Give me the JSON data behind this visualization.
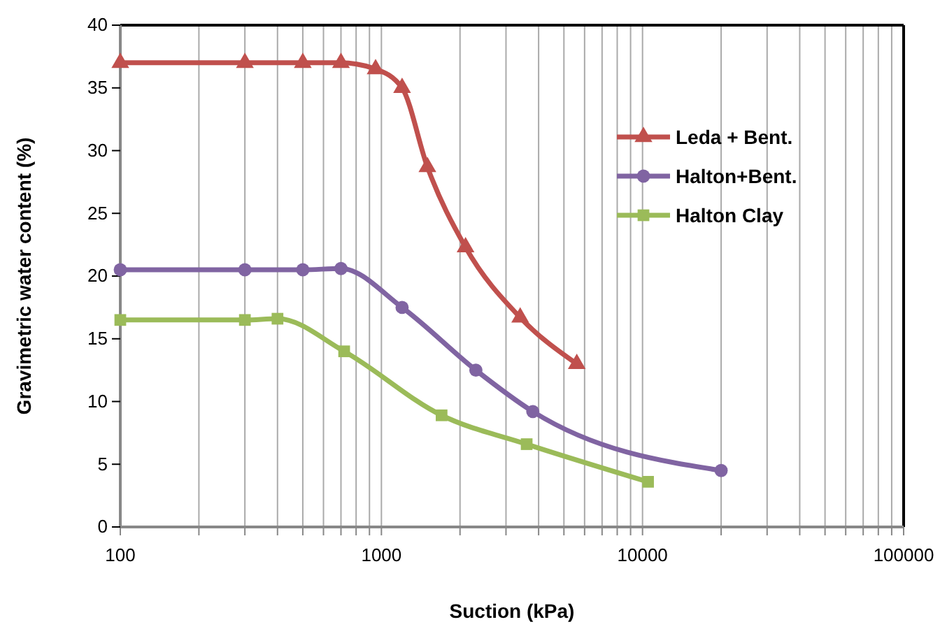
{
  "chart_data": {
    "type": "line",
    "xlabel": "Suction (kPa)",
    "ylabel": "Gravimetric water content (%)",
    "log": "x",
    "grid": "x",
    "legend": "top right",
    "xlim": [
      100,
      100000
    ],
    "ylim": [
      0,
      40
    ],
    "yticks": [
      0,
      5,
      10,
      15,
      20,
      25,
      30,
      35,
      40
    ],
    "xticks": [
      100,
      {
        "value": 200,
        "label": null
      },
      {
        "value": 300,
        "label": null
      },
      {
        "value": 400,
        "label": null
      },
      {
        "value": 500,
        "label": null
      },
      {
        "value": 600,
        "label": null
      },
      {
        "value": 700,
        "label": null
      },
      {
        "value": 800,
        "label": null
      },
      {
        "value": 900,
        "label": null
      },
      1000,
      {
        "value": 2000,
        "label": null
      },
      {
        "value": 3000,
        "label": null
      },
      {
        "value": 4000,
        "label": null
      },
      {
        "value": 5000,
        "label": null
      },
      {
        "value": 6000,
        "label": null
      },
      {
        "value": 7000,
        "label": null
      },
      {
        "value": 8000,
        "label": null
      },
      {
        "value": 9000,
        "label": null
      },
      10000,
      {
        "value": 20000,
        "label": null
      },
      {
        "value": 30000,
        "label": null
      },
      {
        "value": 40000,
        "label": null
      },
      {
        "value": 50000,
        "label": null
      },
      {
        "value": 60000,
        "label": null
      },
      {
        "value": 70000,
        "label": null
      },
      {
        "value": 80000,
        "label": null
      },
      {
        "value": 90000,
        "label": null
      },
      100000
    ],
    "series": [
      {
        "name": "Leda + Bent.",
        "color": "#c0504d",
        "marker": "triangle",
        "x": [
          100,
          300,
          500,
          700,
          950,
          1200,
          1500,
          2100,
          3400,
          5600
        ],
        "values": [
          37,
          37,
          37,
          37,
          36.5,
          35,
          28.7,
          22.3,
          16.7,
          13
        ]
      },
      {
        "name": "Halton+Bent.",
        "color": "#8064a2",
        "marker": "circle",
        "x": [
          100,
          300,
          500,
          700,
          1200,
          2300,
          3800,
          20000
        ],
        "values": [
          20.5,
          20.5,
          20.5,
          20.6,
          17.5,
          12.5,
          9.2,
          4.5
        ]
      },
      {
        "name": "Halton Clay",
        "color": "#9bbb59",
        "marker": "square",
        "x": [
          100,
          300,
          400,
          720,
          1700,
          3600,
          10500
        ],
        "values": [
          16.5,
          16.5,
          16.6,
          14,
          8.9,
          6.6,
          3.6
        ]
      }
    ]
  }
}
